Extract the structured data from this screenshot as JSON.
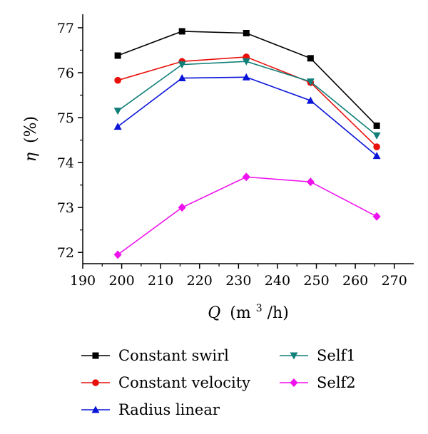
{
  "chart_data": {
    "type": "line",
    "xlabel": {
      "symbol": "Q",
      "unit": "(m",
      "sup": "3",
      "unit_end": "/h)"
    },
    "ylabel": {
      "symbol": "η",
      "unit": "(%)"
    },
    "xlim": [
      190,
      275
    ],
    "ylim": [
      71.75,
      77.3
    ],
    "xticks": [
      190,
      200,
      210,
      220,
      230,
      240,
      250,
      260,
      270
    ],
    "yticks": [
      72,
      73,
      74,
      75,
      76,
      77
    ],
    "x": [
      199,
      215.5,
      232,
      248.5,
      265.5
    ],
    "series": [
      {
        "name": "Constant swirl",
        "color": "#000000",
        "marker": "square",
        "values": [
          76.38,
          76.92,
          76.88,
          76.32,
          74.82
        ]
      },
      {
        "name": "Constant velocity",
        "color": "#e8100b",
        "marker": "circle",
        "values": [
          75.83,
          76.25,
          76.35,
          75.78,
          74.35
        ]
      },
      {
        "name": "Radius linear",
        "color": "#0a14d8",
        "marker": "triangle-up",
        "values": [
          74.8,
          75.88,
          75.9,
          75.38,
          74.15
        ]
      },
      {
        "name": "Self1",
        "color": "#0f7f78",
        "marker": "triangle-down",
        "values": [
          75.15,
          76.18,
          76.25,
          75.8,
          74.6
        ]
      },
      {
        "name": "Self2",
        "color": "#ee11ee",
        "marker": "diamond",
        "values": [
          71.95,
          73.0,
          73.68,
          73.57,
          72.8
        ]
      }
    ],
    "legend": {
      "placement": "bottom"
    }
  }
}
